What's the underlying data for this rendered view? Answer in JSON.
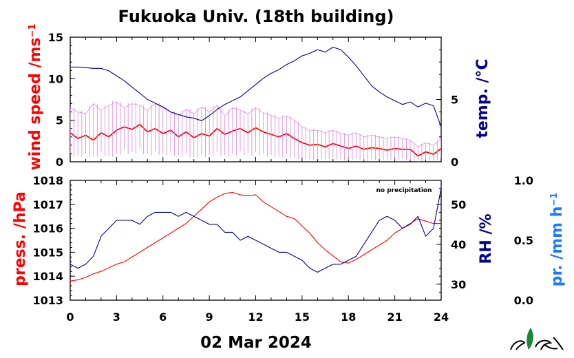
{
  "title": "Fukuoka Univ. (18th building)",
  "date_label": "02 Mar 2024",
  "note": "no precipitation",
  "colors": {
    "red": "#ff0000",
    "navy": "#00008b",
    "blue": "#1e78ff",
    "pink": "#d890d8",
    "logo_green": "#1a8a3a"
  },
  "chart_data": [
    {
      "type": "line",
      "panel": "top",
      "xlim": [
        0,
        24
      ],
      "xticks": [
        0,
        3,
        6,
        9,
        12,
        15,
        18,
        21,
        24
      ],
      "left_axis": {
        "label": "wind speed /ms",
        "label_sup": "−1",
        "ylim": [
          0,
          15
        ],
        "ticks": [
          "0",
          "5",
          "10",
          "15"
        ],
        "color": "#ff0000"
      },
      "right_axis": {
        "label": "temp. /°C",
        "ylim": [
          0,
          10
        ],
        "ticks": [
          "0",
          "5"
        ],
        "color": "#00008b"
      },
      "series": [
        {
          "axis": "left",
          "color": "#ff0000",
          "x": [
            0,
            0.5,
            1,
            1.5,
            2,
            2.5,
            3,
            3.5,
            4,
            4.5,
            5,
            5.5,
            6,
            6.5,
            7,
            7.5,
            8,
            8.5,
            9,
            9.5,
            10,
            10.5,
            11,
            11.5,
            12,
            12.5,
            13,
            13.5,
            14,
            14.5,
            15,
            15.5,
            16,
            16.5,
            17,
            17.5,
            18,
            18.5,
            19,
            19.5,
            20,
            20.5,
            21,
            21.5,
            22,
            22.5,
            23,
            23.5,
            24
          ],
          "y": [
            3.5,
            2.8,
            3.2,
            2.6,
            3.5,
            3.0,
            3.8,
            4.2,
            3.9,
            4.5,
            3.6,
            4.0,
            3.4,
            3.8,
            3.0,
            3.6,
            2.9,
            3.4,
            3.1,
            4.0,
            3.3,
            3.7,
            4.0,
            3.5,
            4.1,
            3.6,
            3.3,
            3.0,
            3.4,
            2.8,
            2.3,
            2.0,
            2.1,
            1.8,
            2.2,
            1.9,
            1.6,
            1.9,
            1.5,
            1.7,
            1.6,
            1.4,
            1.6,
            1.5,
            1.5,
            0.7,
            1.2,
            0.9,
            1.6
          ]
        },
        {
          "axis": "left",
          "color": "#d890d8",
          "x": [
            0,
            0.5,
            1,
            1.5,
            2,
            2.5,
            3,
            3.5,
            4,
            4.5,
            5,
            5.5,
            6,
            6.5,
            7,
            7.5,
            8,
            8.5,
            9,
            9.5,
            10,
            10.5,
            11,
            11.5,
            12,
            12.5,
            13,
            13.5,
            14,
            14.5,
            15,
            15.5,
            16,
            16.5,
            17,
            17.5,
            18,
            18.5,
            19,
            19.5,
            20,
            20.5,
            21,
            21.5,
            22,
            22.5,
            23,
            23.5,
            24
          ],
          "y_high": [
            6.5,
            6.0,
            5.8,
            7.0,
            6.2,
            6.8,
            7.2,
            6.5,
            7.0,
            6.8,
            6.2,
            7.0,
            6.5,
            6.0,
            5.5,
            6.3,
            5.8,
            6.6,
            6.0,
            6.8,
            5.5,
            6.5,
            6.2,
            5.8,
            6.5,
            5.9,
            5.6,
            5.2,
            5.5,
            5.0,
            4.2,
            3.8,
            3.8,
            3.5,
            3.8,
            3.4,
            3.2,
            3.5,
            3.0,
            3.2,
            3.0,
            2.8,
            3.0,
            2.8,
            2.6,
            1.8,
            2.3,
            2.0,
            2.8
          ],
          "y_low": [
            1.0,
            0.8,
            1.0,
            0.6,
            1.2,
            0.7,
            1.0,
            1.5,
            1.2,
            1.6,
            1.0,
            1.3,
            1.0,
            1.2,
            0.8,
            1.0,
            0.6,
            0.9,
            0.8,
            1.2,
            0.8,
            1.0,
            1.3,
            1.0,
            1.2,
            1.0,
            0.8,
            0.6,
            0.9,
            0.5,
            0.4,
            0.3,
            0.4,
            0.3,
            0.5,
            0.3,
            0.2,
            0.4,
            0.2,
            0.3,
            0.3,
            0.2,
            0.3,
            0.3,
            0.2,
            0.0,
            0.2,
            0.1,
            0.4
          ]
        },
        {
          "axis": "right",
          "color": "#00008b",
          "x": [
            0,
            0.5,
            1,
            1.5,
            2,
            2.5,
            3,
            3.5,
            4,
            4.5,
            5,
            5.5,
            6,
            6.5,
            7,
            7.5,
            8,
            8.5,
            9,
            9.5,
            10,
            10.5,
            11,
            11.5,
            12,
            12.5,
            13,
            13.5,
            14,
            14.5,
            15,
            15.5,
            16,
            16.5,
            17,
            17.5,
            18,
            18.5,
            19,
            19.5,
            20,
            20.5,
            21,
            21.5,
            22,
            22.5,
            23,
            23.5,
            24
          ],
          "y": [
            7.6,
            7.6,
            7.55,
            7.5,
            7.5,
            7.3,
            6.9,
            6.5,
            6.0,
            5.5,
            5.0,
            4.7,
            4.4,
            4.0,
            3.8,
            3.6,
            3.5,
            3.3,
            3.7,
            4.2,
            4.6,
            4.9,
            5.2,
            5.7,
            6.2,
            6.7,
            7.1,
            7.4,
            7.8,
            8.1,
            8.5,
            8.7,
            9.0,
            8.8,
            9.2,
            9.0,
            8.4,
            7.7,
            6.9,
            6.1,
            5.6,
            5.2,
            4.9,
            4.6,
            4.8,
            4.4,
            4.7,
            4.5,
            2.8
          ]
        }
      ]
    },
    {
      "type": "line",
      "panel": "bottom",
      "xlim": [
        0,
        24
      ],
      "xticks": [
        0,
        3,
        6,
        9,
        12,
        15,
        18,
        21,
        24
      ],
      "xlabel": "02 Mar 2024",
      "left_axis": {
        "label": "press. /hPa",
        "ylim": [
          1013,
          1018
        ],
        "ticks": [
          "1013",
          "1014",
          "1015",
          "1016",
          "1017",
          "1018"
        ],
        "color": "#ff0000"
      },
      "right_axis": {
        "label": "RH /%",
        "ylim": [
          26,
          56
        ],
        "ticks": [
          "30",
          "40",
          "50"
        ],
        "color": "#00008b"
      },
      "far_axis": {
        "label": "pr. /mm h",
        "label_sup": "−1",
        "ylim": [
          0,
          1
        ],
        "ticks": [
          "0.0",
          "0.5",
          "1.0"
        ],
        "color": "#1e78ff"
      },
      "series": [
        {
          "axis": "left",
          "color": "#ff0000",
          "x": [
            0,
            0.5,
            1,
            1.5,
            2,
            2.5,
            3,
            3.5,
            4,
            4.5,
            5,
            5.5,
            6,
            6.5,
            7,
            7.5,
            8,
            8.5,
            9,
            9.5,
            10,
            10.5,
            11,
            11.5,
            12,
            12.5,
            13,
            13.5,
            14,
            14.5,
            15,
            15.5,
            16,
            16.5,
            17,
            17.5,
            18,
            18.5,
            19,
            19.5,
            20,
            20.5,
            21,
            21.5,
            22,
            22.5,
            23,
            23.5,
            24
          ],
          "y": [
            1013.8,
            1013.85,
            1013.95,
            1014.1,
            1014.2,
            1014.35,
            1014.5,
            1014.6,
            1014.8,
            1015.0,
            1015.2,
            1015.4,
            1015.6,
            1015.8,
            1016.0,
            1016.2,
            1016.5,
            1016.8,
            1017.1,
            1017.3,
            1017.45,
            1017.5,
            1017.4,
            1017.35,
            1017.4,
            1017.1,
            1016.9,
            1016.7,
            1016.5,
            1016.4,
            1016.1,
            1015.8,
            1015.4,
            1015.1,
            1014.85,
            1014.6,
            1014.55,
            1014.7,
            1014.9,
            1015.1,
            1015.3,
            1015.5,
            1015.8,
            1016.0,
            1016.2,
            1016.4,
            1016.3,
            1016.2,
            1016.2
          ]
        },
        {
          "axis": "right",
          "color": "#00008b",
          "x": [
            0,
            0.5,
            1,
            1.5,
            2,
            2.5,
            3,
            3.5,
            4,
            4.5,
            5,
            5.5,
            6,
            6.5,
            7,
            7.5,
            8,
            8.5,
            9,
            9.5,
            10,
            10.5,
            11,
            11.5,
            12,
            12.5,
            13,
            13.5,
            14,
            14.5,
            15,
            15.5,
            16,
            16.5,
            17,
            17.5,
            18,
            18.5,
            19,
            19.5,
            20,
            20.5,
            21,
            21.5,
            22,
            22.5,
            23,
            23.5,
            24
          ],
          "y": [
            35,
            34,
            35,
            37,
            42,
            44,
            46,
            46,
            46,
            45,
            47,
            48,
            48,
            48,
            47,
            48,
            47,
            46,
            45,
            45,
            43,
            43,
            41,
            42,
            41,
            40,
            39,
            38,
            38,
            37,
            36,
            34,
            33,
            34,
            35,
            35,
            36,
            37,
            40,
            43,
            46,
            47,
            46,
            44,
            45,
            47,
            42,
            44,
            54
          ]
        },
        {
          "axis": "far",
          "color": "#1e78ff",
          "x": [],
          "y": []
        }
      ]
    }
  ]
}
